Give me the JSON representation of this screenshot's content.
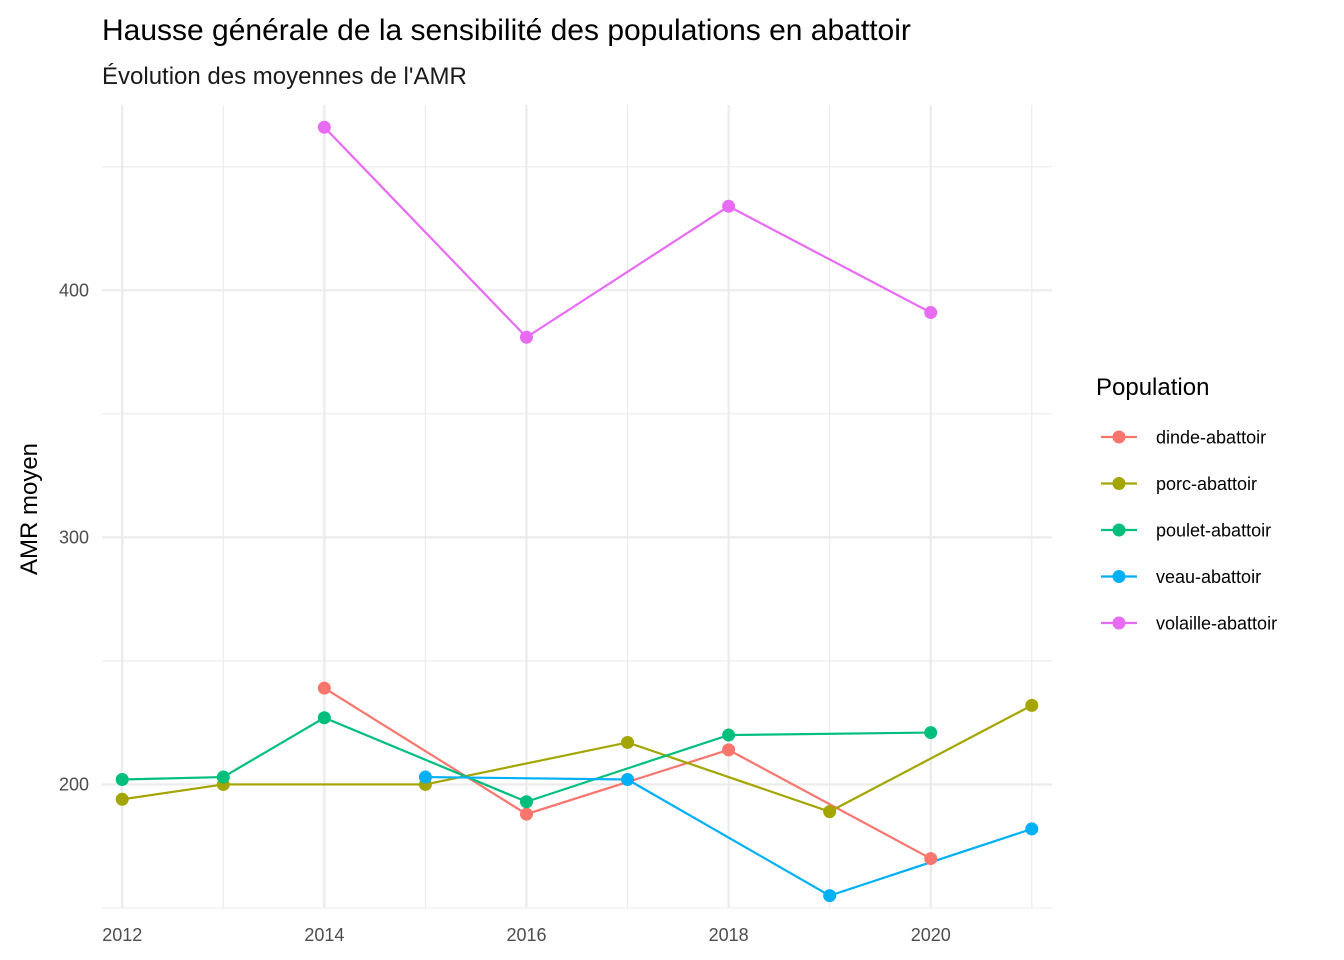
{
  "chart_data": {
    "type": "line",
    "title": "Hausse générale de la sensibilité des populations en abattoir",
    "subtitle": "Évolution des moyennes de l'AMR",
    "xlabel": "",
    "ylabel": "AMR moyen",
    "xlim": [
      2011.8,
      2021.2
    ],
    "ylim": [
      150,
      475
    ],
    "x_ticks": [
      2012,
      2014,
      2016,
      2018,
      2020
    ],
    "y_ticks": [
      200,
      300,
      400
    ],
    "grid": true,
    "legend": {
      "title": "Population",
      "position": "right"
    },
    "series": [
      {
        "name": "dinde-abattoir",
        "color": "#F8766D",
        "points": [
          [
            2014,
            239
          ],
          [
            2016,
            188
          ],
          [
            2018,
            214
          ],
          [
            2020,
            170
          ]
        ]
      },
      {
        "name": "porc-abattoir",
        "color": "#A3A500",
        "points": [
          [
            2012,
            194
          ],
          [
            2013,
            200
          ],
          [
            2015,
            200
          ],
          [
            2017,
            217
          ],
          [
            2019,
            189
          ],
          [
            2021,
            232
          ]
        ]
      },
      {
        "name": "poulet-abattoir",
        "color": "#00BF7D",
        "points": [
          [
            2012,
            202
          ],
          [
            2013,
            203
          ],
          [
            2014,
            227
          ],
          [
            2016,
            193
          ],
          [
            2018,
            220
          ],
          [
            2020,
            221
          ]
        ]
      },
      {
        "name": "veau-abattoir",
        "color": "#00B0F6",
        "points": [
          [
            2015,
            203
          ],
          [
            2017,
            202
          ],
          [
            2019,
            155
          ],
          [
            2021,
            182
          ]
        ]
      },
      {
        "name": "volaille-abattoir",
        "color": "#E76BF3",
        "points": [
          [
            2014,
            466
          ],
          [
            2016,
            381
          ],
          [
            2018,
            434
          ],
          [
            2020,
            391
          ]
        ]
      }
    ]
  }
}
